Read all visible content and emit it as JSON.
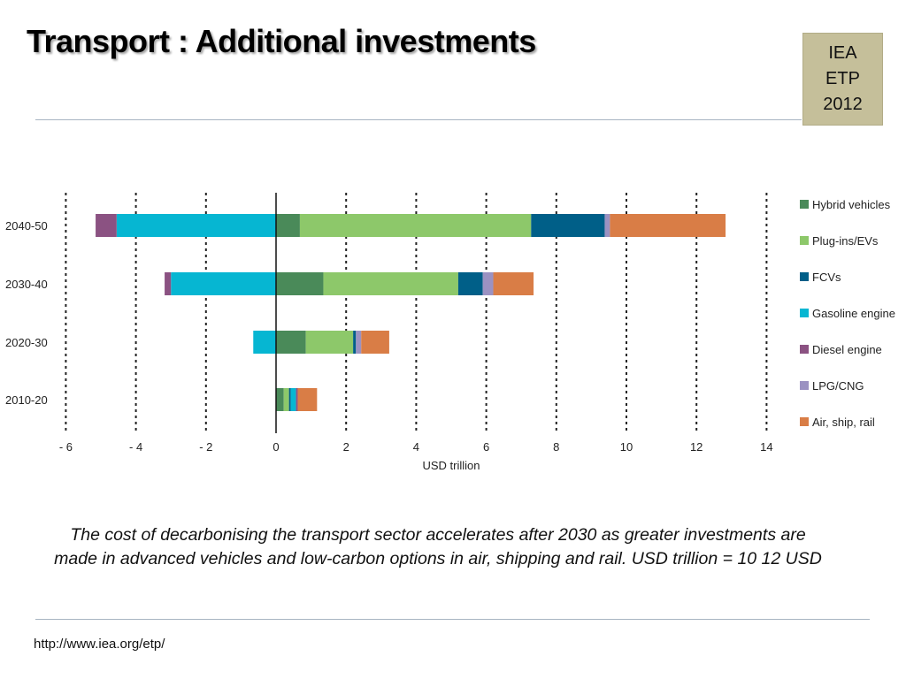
{
  "slide": {
    "title": "Transport : Additional investments",
    "badge": [
      "IEA",
      "ETP",
      "2012"
    ],
    "caption": "The cost of decarbonising the transport sector  accelerates after 2030 as greater investments are made in advanced vehicles and low-carbon options in air, shipping and rail. USD trillion = 10 12 USD",
    "footer_link": "http://www.iea.org/etp/"
  },
  "chart_data": {
    "type": "bar",
    "orientation": "horizontal",
    "stacked": true,
    "title": "",
    "xlabel": "USD trillion",
    "ylabel": "",
    "xlim": [
      -6,
      14
    ],
    "x_ticks": [
      -6,
      -4,
      -2,
      0,
      2,
      4,
      6,
      8,
      10,
      12,
      14
    ],
    "x_tick_labels": [
      "- 6",
      "- 4",
      "- 2",
      "0",
      "2",
      "4",
      "6",
      "8",
      "10",
      "12",
      "14"
    ],
    "gridlines_dashed_at": [
      -6,
      -4,
      -2,
      2,
      4,
      6,
      8,
      10,
      12,
      14
    ],
    "zero_line": true,
    "legend_position": "right",
    "categories": [
      "2040-50",
      "2030-40",
      "2020-30",
      "2010-20"
    ],
    "series": [
      {
        "name": "Hybrid vehicles",
        "color": "#4a8a59",
        "values": [
          0.68,
          1.35,
          0.85,
          0.22
        ]
      },
      {
        "name": "Plug-ins/EVs",
        "color": "#8dc86a",
        "values": [
          6.6,
          3.85,
          1.35,
          0.15
        ]
      },
      {
        "name": "FCVs",
        "color": "#005f88",
        "values": [
          2.1,
          0.7,
          0.08,
          0.05
        ]
      },
      {
        "name": "Gasoline engine",
        "color": "#06b6d2",
        "values": [
          -4.55,
          -3.0,
          -0.65,
          0.15
        ]
      },
      {
        "name": "Diesel engine",
        "color": "#8b5282",
        "values": [
          -0.6,
          -0.18,
          0,
          0.05
        ]
      },
      {
        "name": "LPG/CNG",
        "color": "#9b92c2",
        "values": [
          0.15,
          0.3,
          0.15,
          0
        ]
      },
      {
        "name": "Air, ship, rail",
        "color": "#d97d46",
        "values": [
          3.3,
          1.15,
          0.8,
          0.55
        ]
      }
    ]
  }
}
